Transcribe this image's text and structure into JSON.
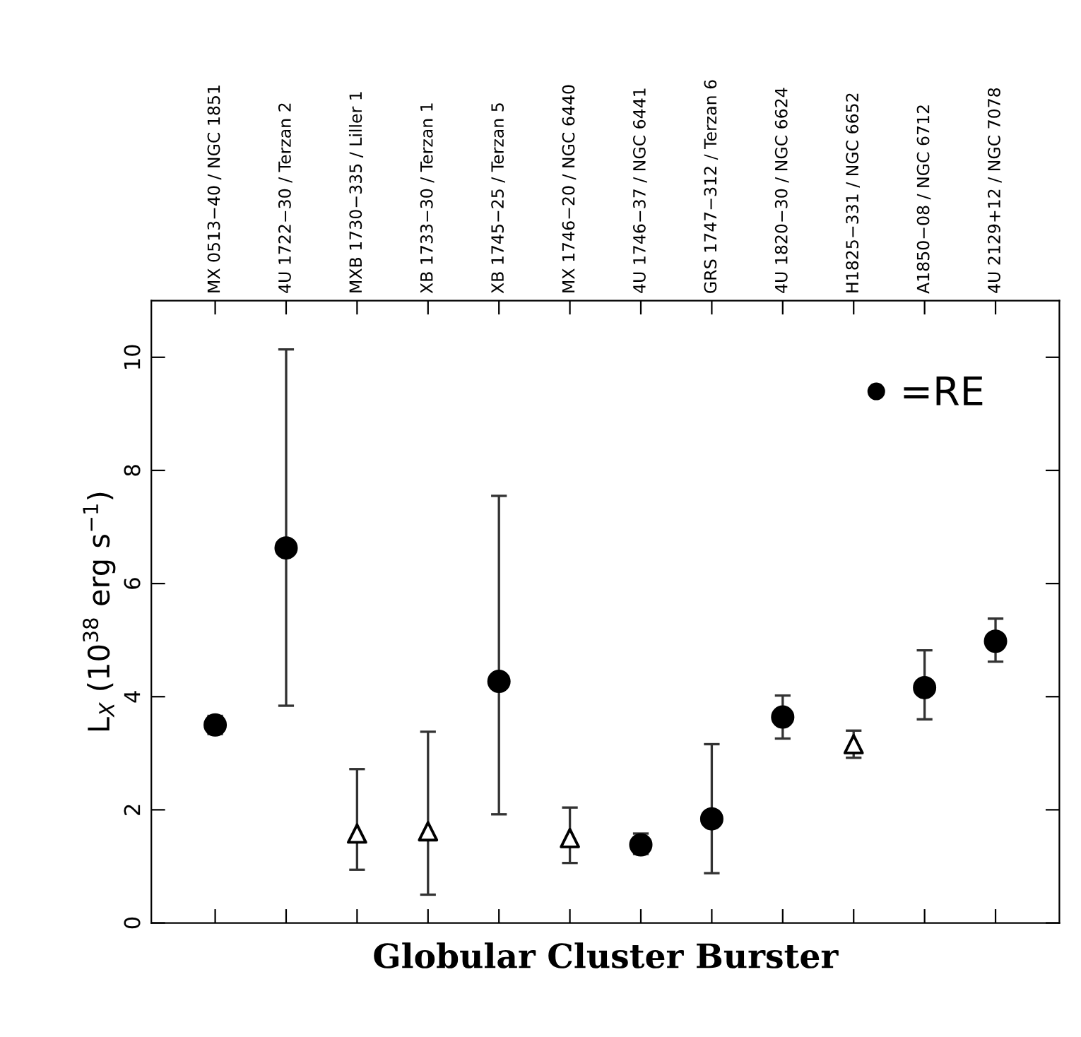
{
  "chart_data": {
    "type": "scatter",
    "xlabel": "Globular Cluster Burster",
    "ylabel": "L$_{X}$ (10$^{38}$ erg s$^{−1}$)",
    "categories": [
      "MX 0513−40 / NGC 1851",
      "4U 1722−30 / Terzan 2",
      "MXB 1730−335 / Liller 1",
      "XB 1733−30 / Terzan 1",
      "XB 1745−25 / Terzan 5",
      "MX 1746−20 / NGC 6440",
      "4U 1746−37 / NGC 6441",
      "GRS 1747−312 / Terzan 6",
      "4U 1820−30 / NGC 6624",
      "H1825−331 / NGC 6652",
      "A1850−08 / NGC 6712",
      "4U 2129+12 / NGC 7078"
    ],
    "series": [
      {
        "name": "=RE",
        "color": "#000000",
        "marker": "circle",
        "values": [
          3.5,
          6.63,
          null,
          null,
          4.27,
          null,
          1.38,
          1.84,
          3.64,
          null,
          4.16,
          4.98
        ],
        "errors": [
          [
            3.34,
            3.66
          ],
          [
            3.84,
            10.14
          ],
          null,
          null,
          [
            1.92,
            7.55
          ],
          null,
          [
            1.22,
            1.58
          ],
          [
            0.88,
            3.16
          ],
          [
            3.26,
            4.02
          ],
          null,
          [
            3.6,
            4.82
          ],
          [
            4.62,
            5.38
          ]
        ]
      },
      {
        "color": "#000000",
        "marker": "triangle",
        "values": [
          null,
          null,
          1.58,
          1.62,
          null,
          1.5,
          null,
          null,
          null,
          3.16,
          null,
          null
        ],
        "errors": [
          null,
          null,
          [
            0.94,
            2.72
          ],
          [
            0.5,
            3.38
          ],
          null,
          [
            1.06,
            2.04
          ],
          null,
          null,
          null,
          [
            2.92,
            3.4
          ],
          null,
          null
        ]
      }
    ],
    "ylim": [
      0,
      11
    ],
    "yticks": [
      0,
      2,
      4,
      6,
      8,
      10
    ],
    "grid": false,
    "legend": "top right"
  }
}
